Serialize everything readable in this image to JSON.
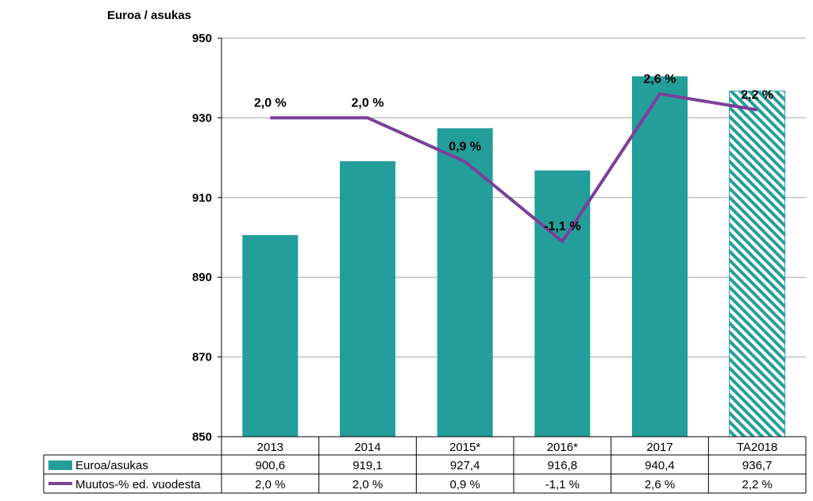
{
  "chart_data": {
    "type": "bar",
    "title": "Euroa / asukas",
    "ylim": [
      850,
      950
    ],
    "yticks": [
      850,
      870,
      890,
      910,
      930,
      950
    ],
    "grid": true,
    "categories": [
      "2013",
      "2014",
      "2015*",
      "2016*",
      "2017",
      "TA2018"
    ],
    "series": [
      {
        "name": "Euroa/asukas",
        "type": "bar",
        "color": "#249e9a",
        "values": [
          900.6,
          919.1,
          927.4,
          916.8,
          940.4,
          936.7
        ],
        "value_labels": [
          "900,6",
          "919,1",
          "927,4",
          "916,8",
          "940,4",
          "936,7"
        ],
        "hatched": [
          false,
          false,
          false,
          false,
          false,
          true
        ]
      },
      {
        "name": "Muutos-% ed. vuodesta",
        "type": "line",
        "color": "#7b3f98",
        "values": [
          2.0,
          2.0,
          0.9,
          -1.1,
          2.6,
          2.2
        ],
        "value_labels": [
          "2,0 %",
          "2,0 %",
          "0,9 %",
          "-1,1 %",
          "2,6 %",
          "2,2 %"
        ]
      }
    ],
    "legend": "data-table-below"
  }
}
